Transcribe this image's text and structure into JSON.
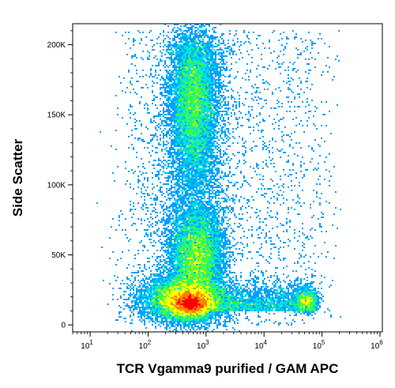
{
  "chart_data": {
    "type": "heatmap",
    "title": "",
    "xlabel": "TCR Vgamma9 purified / GAM APC",
    "ylabel": "Side Scatter",
    "x_scale": "log",
    "y_scale": "linear",
    "xlim": [
      5,
      1100000
    ],
    "ylim": [
      -5000,
      215000
    ],
    "x_ticks": [
      {
        "value": 10,
        "base": "10",
        "exp": "1"
      },
      {
        "value": 100,
        "base": "10",
        "exp": "2"
      },
      {
        "value": 1000,
        "base": "10",
        "exp": "3"
      },
      {
        "value": 10000,
        "base": "10",
        "exp": "4"
      },
      {
        "value": 100000,
        "base": "10",
        "exp": "5"
      },
      {
        "value": 1000000,
        "base": "10",
        "exp": "6"
      }
    ],
    "y_ticks": [
      {
        "value": 0,
        "label": "0"
      },
      {
        "value": 50000,
        "label": "50K"
      },
      {
        "value": 100000,
        "label": "100K"
      },
      {
        "value": 150000,
        "label": "150K"
      },
      {
        "value": 200000,
        "label": "200K"
      }
    ],
    "populations": [
      {
        "x_center": 550,
        "y_center": 15000,
        "x_spread_decades": 0.16,
        "y_spread": 4000,
        "density": "highest"
      },
      {
        "x_center": 420,
        "y_center": 18000,
        "x_spread_decades": 0.35,
        "y_spread": 8000,
        "density": "high"
      },
      {
        "x_center": 700,
        "y_center": 48000,
        "x_spread_decades": 0.22,
        "y_spread": 17000,
        "density": "medium"
      },
      {
        "x_center": 620,
        "y_center": 158000,
        "x_spread_decades": 0.2,
        "y_spread": 28000,
        "density": "medium"
      },
      {
        "x_center": 55000,
        "y_center": 17000,
        "x_spread_decades": 0.1,
        "y_spread": 4000,
        "density": "low"
      }
    ],
    "colormap": [
      "#0000ff",
      "#00a0ff",
      "#00e0e0",
      "#40ff40",
      "#ffff00",
      "#ff8000",
      "#ff0000"
    ],
    "grid": false,
    "legend": "none"
  }
}
